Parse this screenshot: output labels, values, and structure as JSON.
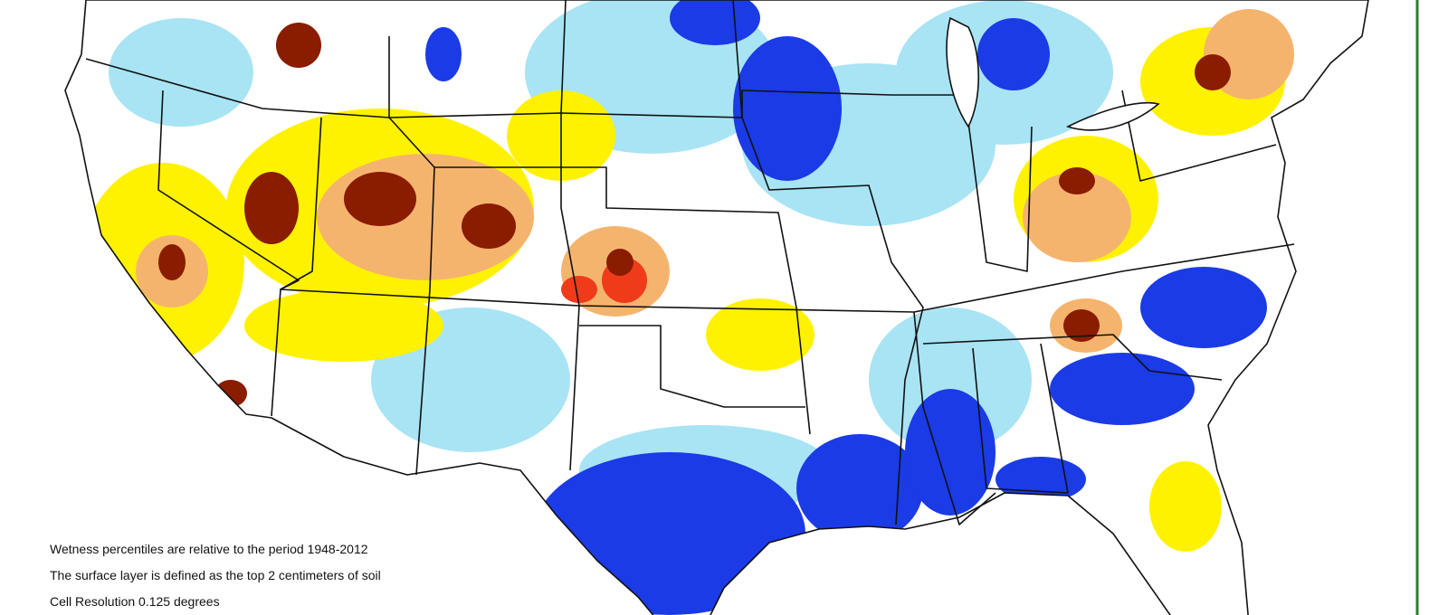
{
  "notes": [
    "Wetness percentiles are relative to the period 1948-2012",
    "The surface layer is defined as the top 2 centimeters of soil",
    "Cell Resolution 0.125 degrees"
  ]
}
